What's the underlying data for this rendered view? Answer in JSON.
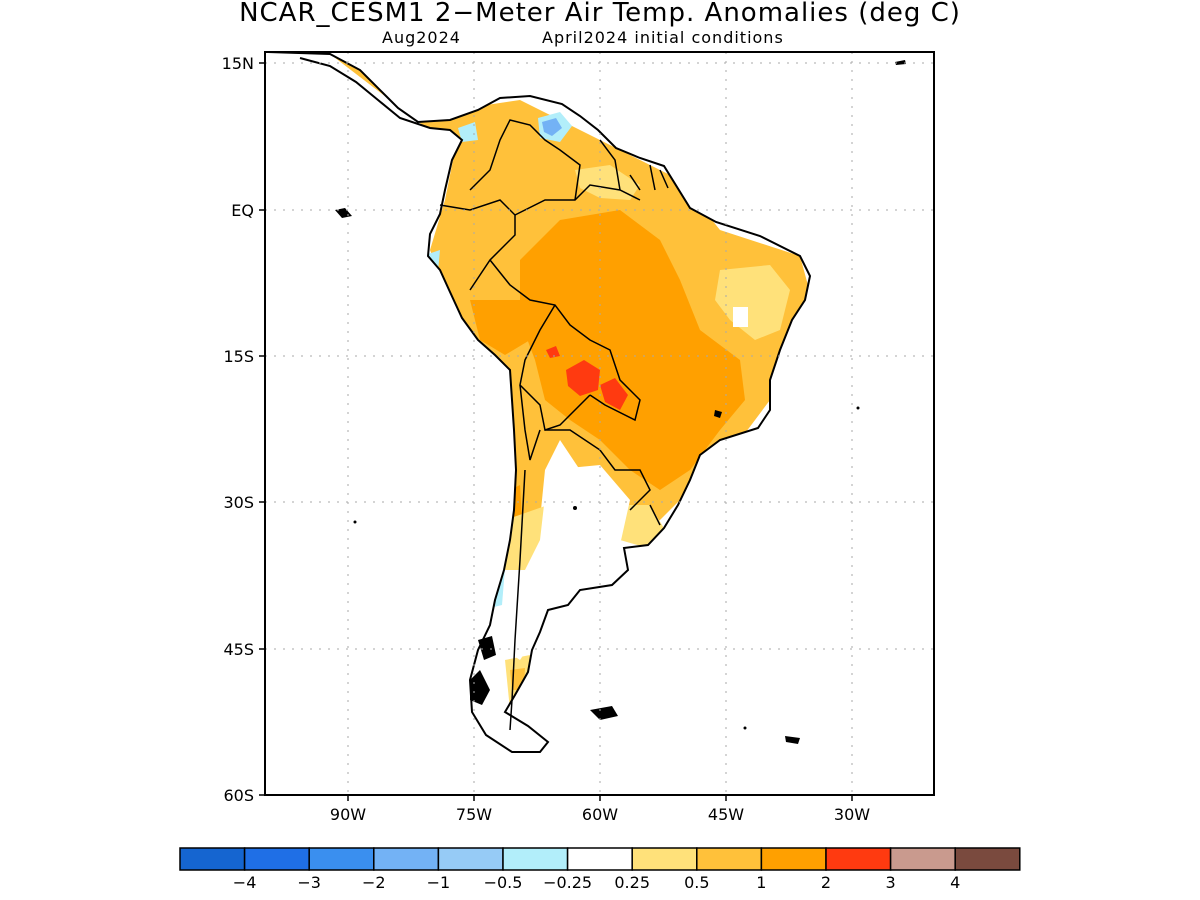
{
  "title": "NCAR_CESM1 2−Meter Air Temp. Anomalies (deg C)",
  "subtitle_left": "Aug2024",
  "subtitle_right": "April2024 initial conditions",
  "map": {
    "lat_labels": [
      "15N",
      "EQ",
      "15S",
      "30S",
      "45S",
      "60S"
    ],
    "lon_labels": [
      "90W",
      "75W",
      "60W",
      "45W",
      "30W"
    ],
    "lat_range": [
      -60,
      15
    ],
    "lon_range": [
      -100,
      -20
    ]
  },
  "colorbar": {
    "labels": [
      "−4",
      "−3",
      "−2",
      "−1",
      "−0.5",
      "−0.25",
      "0.25",
      "0.5",
      "1",
      "2",
      "3",
      "4"
    ],
    "colors": [
      "#1565d0",
      "#1f6fe6",
      "#3a8fef",
      "#73b2f5",
      "#96cbf6",
      "#b2eefa",
      "#ffffff",
      "#ffe17a",
      "#ffc13a",
      "#ffa000",
      "#ff3a10",
      "#c99a8e",
      "#7a4a3e"
    ]
  }
}
